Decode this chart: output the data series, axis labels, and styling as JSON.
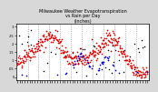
{
  "title": "Milwaukee Weather Evapotranspiration\nvs Rain per Day\n(Inches)",
  "title_fontsize": 3.5,
  "background_color": "#d8d8d8",
  "plot_bg_color": "#ffffff",
  "x_min": 0,
  "x_max": 370,
  "y_min": -0.02,
  "y_max": 0.32,
  "grid_color": "#888888",
  "n_days": 365,
  "et_color": "#dd0000",
  "rain_color": "#0000cc",
  "black_color": "#000000",
  "dot_size_et": 1.5,
  "dot_size_rain": 1.5,
  "dot_size_black": 1.2,
  "dashed_positions": [
    31,
    59,
    90,
    120,
    151,
    181,
    212,
    243,
    273,
    304,
    334
  ],
  "yticks": [
    0.0,
    0.05,
    0.1,
    0.15,
    0.2,
    0.25,
    0.3
  ],
  "ytick_labels": [
    "0",
    ".05",
    ".1",
    ".15",
    ".2",
    ".25",
    ".3"
  ],
  "seed": 42
}
